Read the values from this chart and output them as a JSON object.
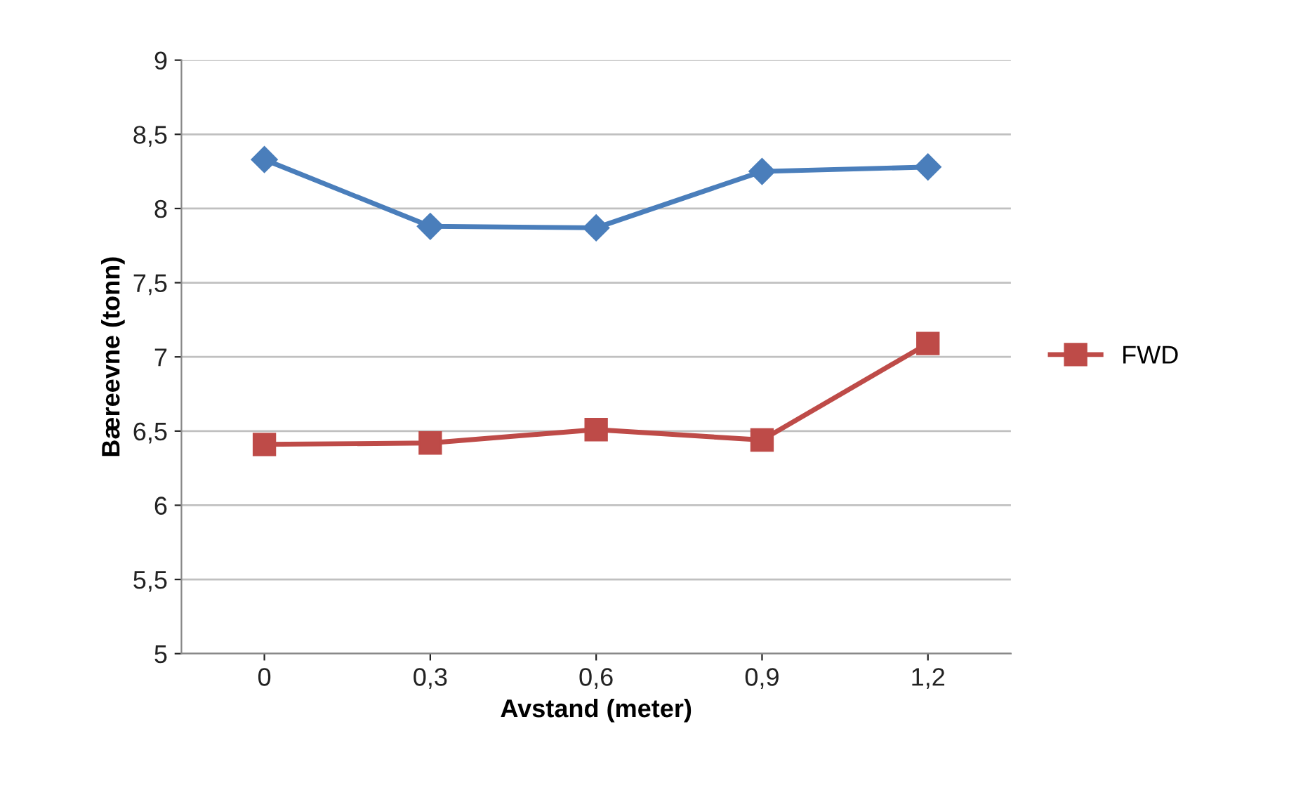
{
  "chart_data": {
    "type": "line",
    "xlabel": "Avstand (meter)",
    "ylabel": "Bæreevne (tonn)",
    "categories": [
      "0",
      "0,3",
      "0,6",
      "0,9",
      "1,2"
    ],
    "series": [
      {
        "color": "#4a7ebb",
        "marker": "diamond",
        "values": [
          8.33,
          7.88,
          7.87,
          8.25,
          8.28
        ]
      },
      {
        "name": "FWD",
        "color": "#be4b48",
        "marker": "square",
        "values": [
          6.41,
          6.42,
          6.51,
          6.44,
          7.09
        ]
      }
    ],
    "ylim": [
      5,
      9
    ],
    "yticks": [
      5,
      {
        "value": 5.5,
        "label": "5,5"
      },
      6,
      {
        "value": 6.5,
        "label": "6,5"
      },
      7,
      {
        "value": 7.5,
        "label": "7,5"
      },
      8,
      {
        "value": 8.5,
        "label": "8,5"
      },
      9
    ],
    "grid": "y",
    "legend": "right",
    "line_style": "solid"
  }
}
